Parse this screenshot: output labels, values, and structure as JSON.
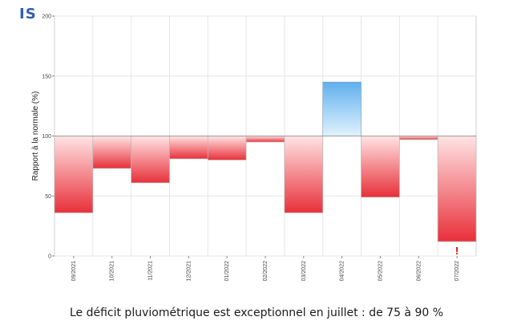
{
  "header": {
    "brand": "IS"
  },
  "caption": "Le déficit pluviométrique est exceptionnel en juillet :  de 75 à 90 %",
  "colors": {
    "deficit": "#e8303a",
    "excess": "#5fb0ee",
    "grid": "#e6e6e6"
  },
  "chart_data": {
    "type": "bar",
    "baseline": 100,
    "ylabel": "Rapport à la normale (%)",
    "ylim": [
      0,
      200
    ],
    "yticks": [
      0,
      50,
      100,
      150,
      200
    ],
    "grid": true,
    "categories": [
      "09/2021",
      "10/2021",
      "11/2021",
      "12/2021",
      "01/2022",
      "02/2022",
      "03/2022",
      "04/2022",
      "05/2022",
      "06/2022",
      "07/2022"
    ],
    "values": [
      36,
      73,
      61,
      81,
      80,
      95,
      36,
      145,
      49,
      97,
      12
    ],
    "annotations": [
      {
        "category": "07/2022",
        "text": "!"
      }
    ]
  }
}
